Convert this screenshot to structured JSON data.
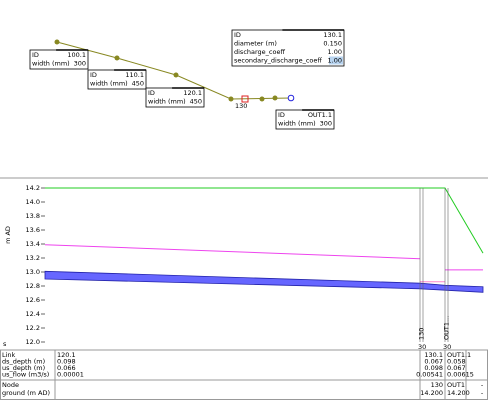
{
  "plan": {
    "node_label": "130",
    "boxes": [
      {
        "rows": [
          [
            "ID",
            "100.1"
          ],
          [
            "width (mm)",
            "300"
          ]
        ]
      },
      {
        "rows": [
          [
            "ID",
            "110.1"
          ],
          [
            "width (mm)",
            "450"
          ]
        ]
      },
      {
        "rows": [
          [
            "ID",
            "120.1"
          ],
          [
            "width (mm)",
            "450"
          ]
        ]
      },
      {
        "rows": [
          [
            "ID",
            "130.1"
          ],
          [
            "diameter (m)",
            "0.150"
          ],
          [
            "discharge_coeff",
            "1.00"
          ],
          [
            "secondary_discharge_coeff",
            "1.00"
          ]
        ]
      },
      {
        "rows": [
          [
            "ID",
            "OUT1.1"
          ],
          [
            "width (mm)",
            "300"
          ]
        ]
      }
    ]
  },
  "section": {
    "axis_label": "m AD",
    "corner_label": "s",
    "ylim": [
      12.0,
      14.2
    ],
    "yticks": [
      {
        "value": 12,
        "label": "12.0"
      },
      12.2,
      12.4,
      12.6,
      12.8,
      {
        "value": 13,
        "label": "13.0"
      },
      13.2,
      13.4,
      13.6,
      13.8,
      {
        "value": 14,
        "label": "14.0"
      },
      14.2
    ],
    "series": [
      {
        "color": "#22cc22",
        "values": [
          14.2,
          14.2,
          14.2,
          13.27
        ]
      },
      {
        "color": "#ee44ee",
        "values": [
          13.39,
          13.19,
          null,
          null
        ]
      },
      {
        "color": "#ee44ee",
        "values": [
          null,
          null,
          13.03,
          13.03
        ]
      },
      {
        "color": "#ff88cc",
        "values": [
          null,
          12.86,
          12.86,
          null
        ]
      }
    ],
    "pipe": {
      "color": "#6666ff",
      "soffit": [
        13.01,
        12.84,
        12.81,
        12.79
      ],
      "invert": [
        12.9,
        12.76,
        12.74,
        12.71
      ]
    },
    "markers": [
      {
        "label": "130",
        "sub": "30"
      },
      {
        "label": "OUT1...",
        "sub": "30"
      }
    ]
  },
  "table": {
    "rows": [
      {
        "label": "Link",
        "left": "120.1",
        "mid": "130.1",
        "right": "OUT1.1"
      },
      {
        "label": "ds_depth (m)",
        "left": "0.098",
        "mid": "0.067",
        "right": "0.058"
      },
      {
        "label": "us_depth (m)",
        "left": "0.066",
        "mid": "0.098",
        "right": "0.067"
      },
      {
        "label": "us_flow (m3/s)",
        "left": "0.00001",
        "mid": "0.00541",
        "right": "0.00615"
      },
      {
        "label": "Node",
        "mid": "130",
        "right": "OUT1",
        "end": "-"
      },
      {
        "label": "ground (m AD)",
        "mid": "14.200",
        "right": "14.200",
        "end": "-"
      }
    ]
  }
}
